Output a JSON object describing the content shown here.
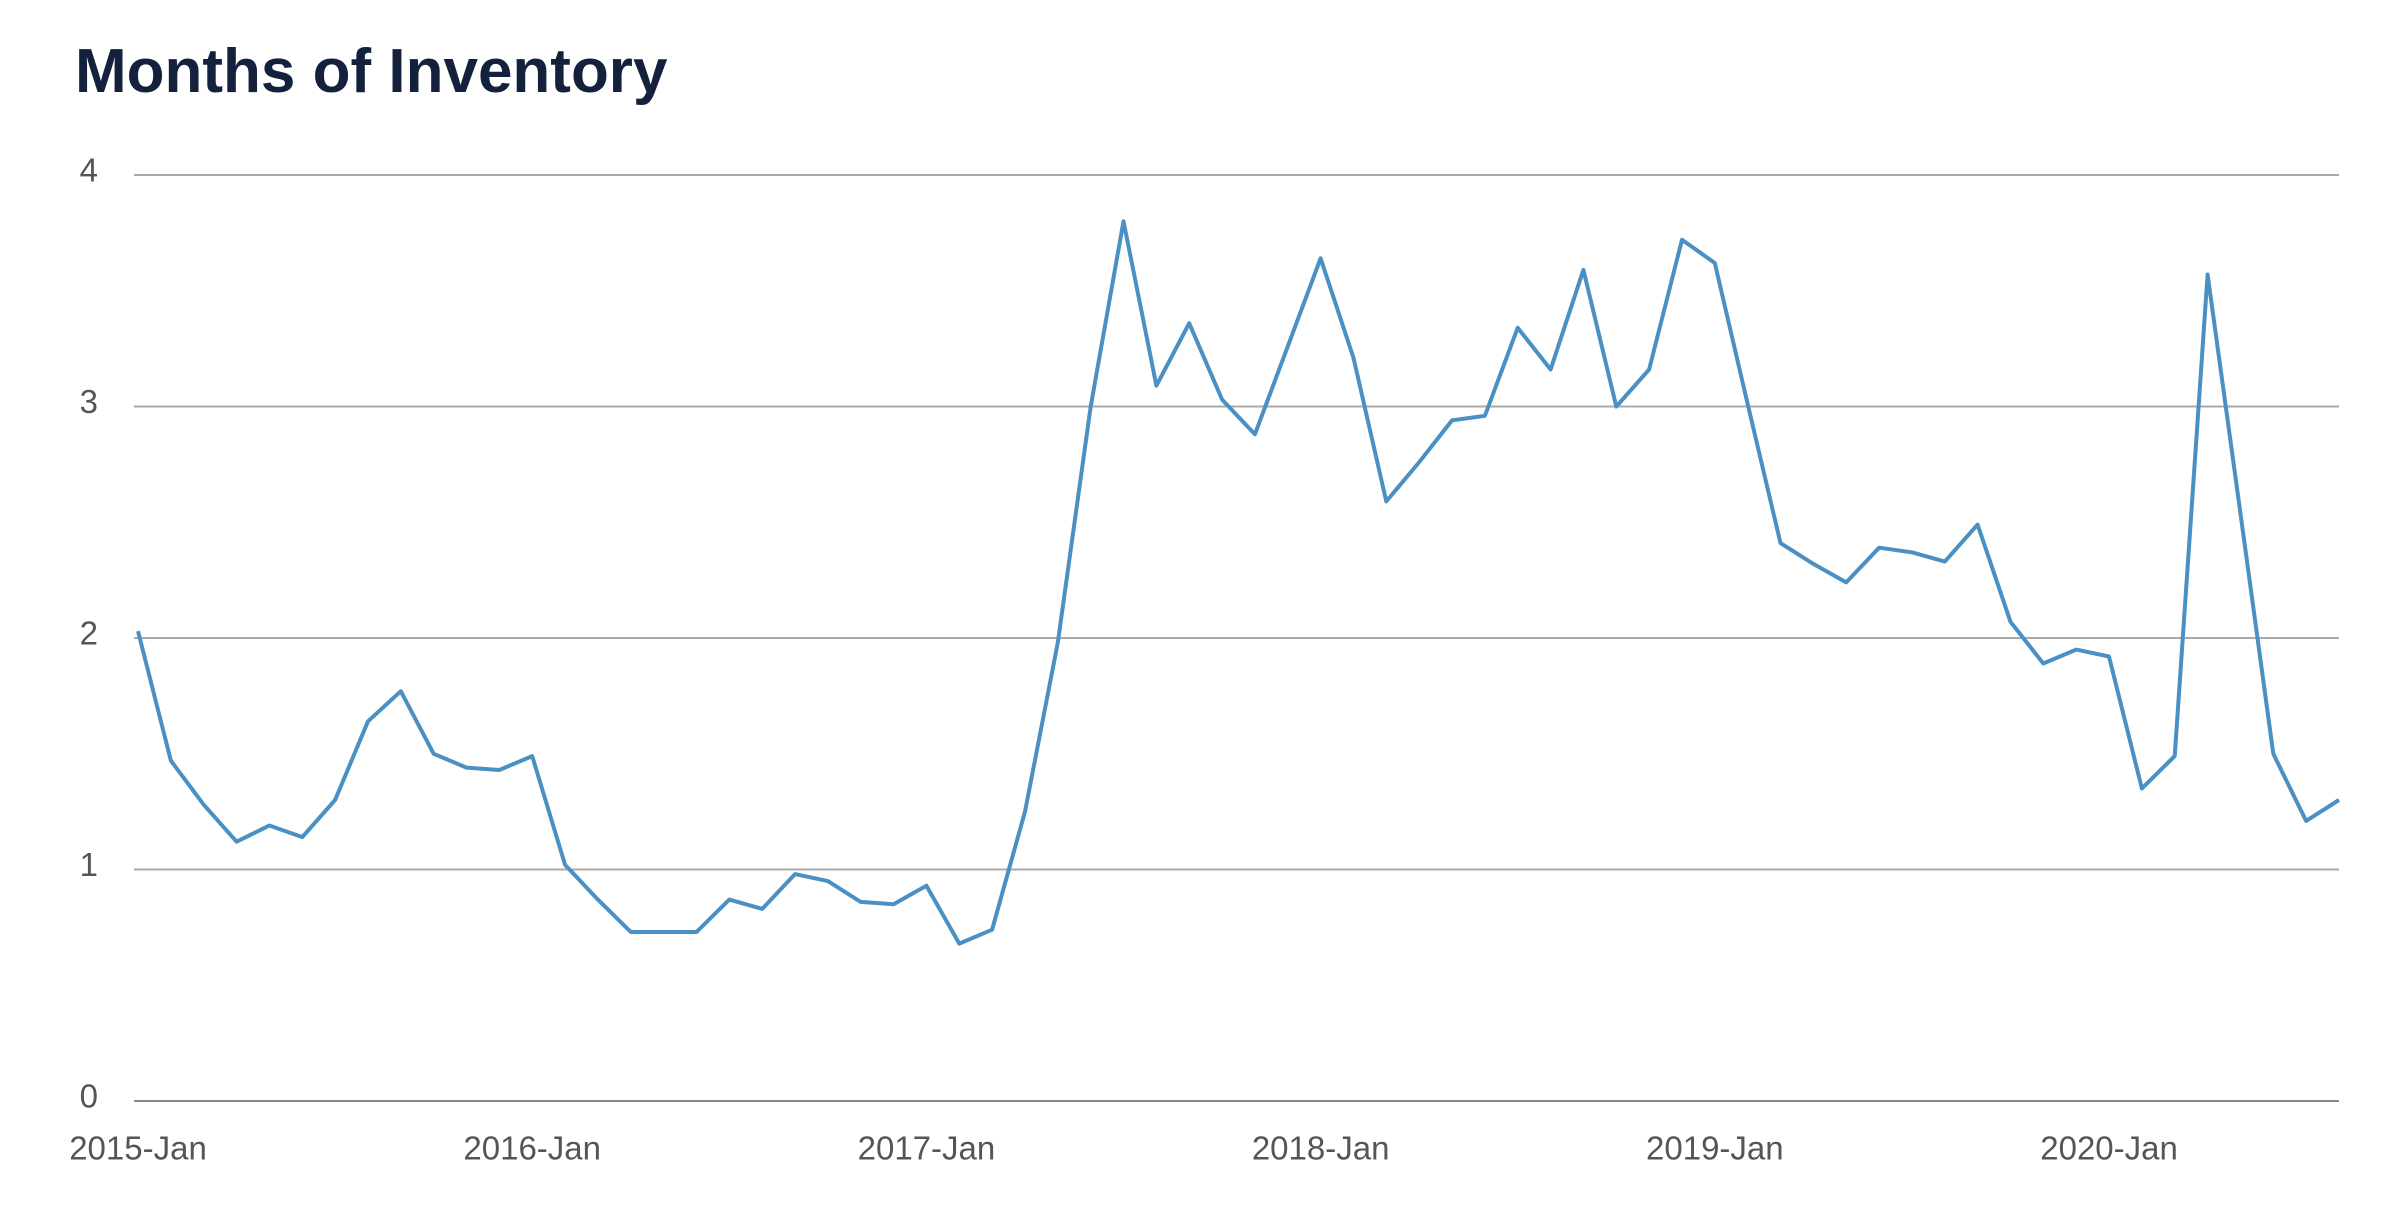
{
  "chart_data": {
    "type": "line",
    "title": "Months of Inventory",
    "categories": [
      "2015-Jan",
      null,
      null,
      null,
      null,
      null,
      null,
      null,
      null,
      null,
      null,
      null,
      "2016-Jan",
      null,
      null,
      null,
      null,
      null,
      null,
      null,
      null,
      null,
      null,
      null,
      "2017-Jan",
      null,
      null,
      null,
      null,
      null,
      null,
      null,
      null,
      null,
      null,
      null,
      "2018-Jan",
      null,
      null,
      null,
      null,
      null,
      null,
      null,
      null,
      null,
      null,
      null,
      "2019-Jan",
      null,
      null,
      null,
      null,
      null,
      null,
      null,
      null,
      null,
      null,
      null,
      "2020-Jan",
      null,
      null,
      null,
      null,
      null,
      null,
      null
    ],
    "series": [
      {
        "name": "Months of Inventory",
        "color": "#4a90c2",
        "values": [
          2.03,
          1.47,
          1.28,
          1.12,
          1.19,
          1.14,
          1.3,
          1.64,
          1.77,
          1.5,
          1.44,
          1.43,
          1.49,
          1.02,
          0.87,
          0.73,
          0.73,
          0.73,
          0.87,
          0.83,
          0.98,
          0.95,
          0.86,
          0.85,
          0.93,
          0.68,
          0.74,
          1.25,
          1.98,
          3.0,
          3.8,
          3.09,
          3.36,
          3.03,
          2.88,
          3.26,
          3.64,
          3.21,
          2.59,
          2.76,
          2.94,
          2.96,
          3.34,
          3.16,
          3.59,
          3.0,
          3.16,
          3.72,
          3.62,
          3.01,
          2.41,
          2.32,
          2.24,
          2.39,
          2.37,
          2.33,
          2.49,
          2.07,
          1.89,
          1.95,
          1.92,
          1.35,
          1.49,
          3.57,
          2.54,
          1.5,
          1.21,
          1.3
        ]
      }
    ],
    "ylim": [
      0,
      4
    ],
    "yticks": [
      0,
      1,
      2,
      3,
      4
    ],
    "grid": true
  }
}
